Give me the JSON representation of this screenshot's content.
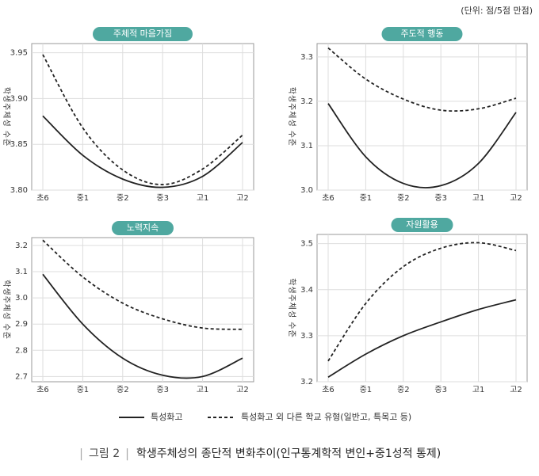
{
  "unit_note": "(단위: 점/5점 만점)",
  "y_label": "학생주체성 수준",
  "caption": {
    "figure": "그림 2",
    "text": "학생주체성의 종단적 변화추이(인구통계학적 변인+중1성적 통제)"
  },
  "chart_data": [
    {
      "type": "line",
      "title": "주체적 마음가짐",
      "categories": [
        "초6",
        "중1",
        "중2",
        "중3",
        "고1",
        "고2"
      ],
      "ylim": [
        3.8,
        3.96
      ],
      "yticks": [
        {
          "value": 3.8,
          "label": "3.80"
        },
        3.85,
        {
          "value": 3.9,
          "label": "3.90"
        },
        3.95
      ],
      "grid": true,
      "series": [
        {
          "name": "특성화고",
          "color": "#222222",
          "dash": false,
          "values": [
            3.881,
            3.838,
            3.812,
            3.803,
            3.815,
            3.852
          ]
        },
        {
          "name": "특성화고 외 다른 학교 유형(일반고, 특목고 등)",
          "color": "#222222",
          "dash": true,
          "values": [
            3.948,
            3.868,
            3.822,
            3.806,
            3.823,
            3.86
          ]
        }
      ]
    },
    {
      "type": "line",
      "title": "주도적 행동",
      "categories": [
        "초6",
        "중1",
        "중2",
        "중3",
        "고1",
        "고2"
      ],
      "ylim": [
        3.0,
        3.33
      ],
      "yticks": [
        {
          "value": 3.0,
          "label": "3.0"
        },
        3.1,
        3.2,
        3.3
      ],
      "grid": true,
      "series": [
        {
          "color": "#222222",
          "dash": false,
          "values": [
            3.195,
            3.075,
            3.015,
            3.01,
            3.06,
            3.175
          ]
        },
        {
          "color": "#222222",
          "dash": true,
          "values": [
            3.32,
            3.25,
            3.205,
            3.18,
            3.183,
            3.207
          ]
        }
      ]
    },
    {
      "type": "line",
      "title": "노력지속",
      "categories": [
        "초6",
        "중1",
        "중2",
        "중3",
        "고1",
        "고2"
      ],
      "ylim": [
        2.68,
        3.23
      ],
      "yticks": [
        2.7,
        2.8,
        2.9,
        {
          "value": 3.0,
          "label": "3.0"
        },
        3.1,
        3.2
      ],
      "grid": true,
      "series": [
        {
          "color": "#222222",
          "dash": false,
          "values": [
            3.09,
            2.9,
            2.77,
            2.705,
            2.7,
            2.77
          ]
        },
        {
          "color": "#222222",
          "dash": true,
          "values": [
            3.22,
            3.08,
            2.98,
            2.92,
            2.885,
            2.88
          ]
        }
      ]
    },
    {
      "type": "line",
      "title": "자원활용",
      "categories": [
        "초6",
        "중1",
        "중2",
        "중3",
        "고1",
        "고2"
      ],
      "ylim": [
        3.2,
        3.52
      ],
      "yticks": [
        3.2,
        3.3,
        3.4,
        3.5
      ],
      "grid": true,
      "series": [
        {
          "color": "#222222",
          "dash": false,
          "values": [
            3.21,
            3.26,
            3.3,
            3.33,
            3.357,
            3.378
          ]
        },
        {
          "color": "#222222",
          "dash": true,
          "values": [
            3.245,
            3.37,
            3.45,
            3.49,
            3.502,
            3.485
          ]
        }
      ]
    }
  ]
}
